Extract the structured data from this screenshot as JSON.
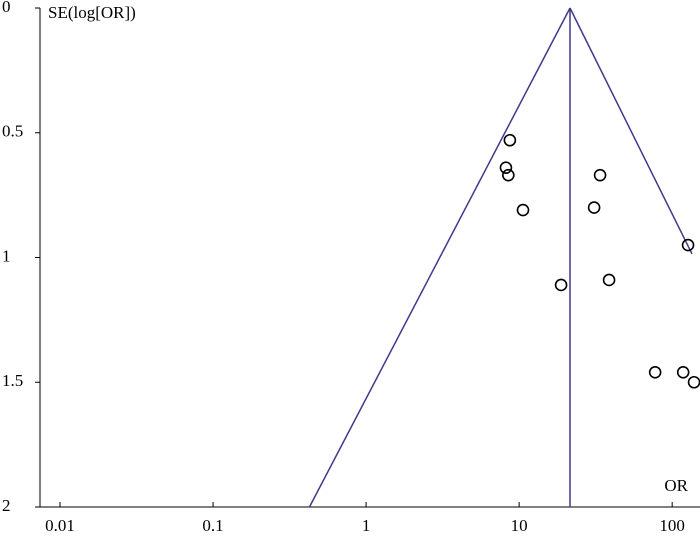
{
  "chart_data": {
    "type": "scatter",
    "y_label": "SE(log[OR])",
    "x_label": "OR",
    "x": [
      8.7,
      8.2,
      8.5,
      10.6,
      33.8,
      30.9,
      127,
      18.8,
      38.7,
      77.4,
      118,
      139
    ],
    "values": [
      0.53,
      0.64,
      0.67,
      0.81,
      0.67,
      0.8,
      0.95,
      1.11,
      1.09,
      1.46,
      1.46,
      1.5
    ],
    "marker_color": "#000000",
    "pooled_or": 21.5,
    "funnel_color": "#3f3a8a",
    "xscale": "log",
    "y_reversed": true,
    "xlim": [
      0.0074,
      152
    ],
    "xticks": [
      0.01,
      0.1,
      1,
      10,
      100
    ],
    "ylim": [
      0,
      2
    ],
    "yticks": [
      0,
      0.5,
      1,
      1.5,
      2
    ]
  }
}
